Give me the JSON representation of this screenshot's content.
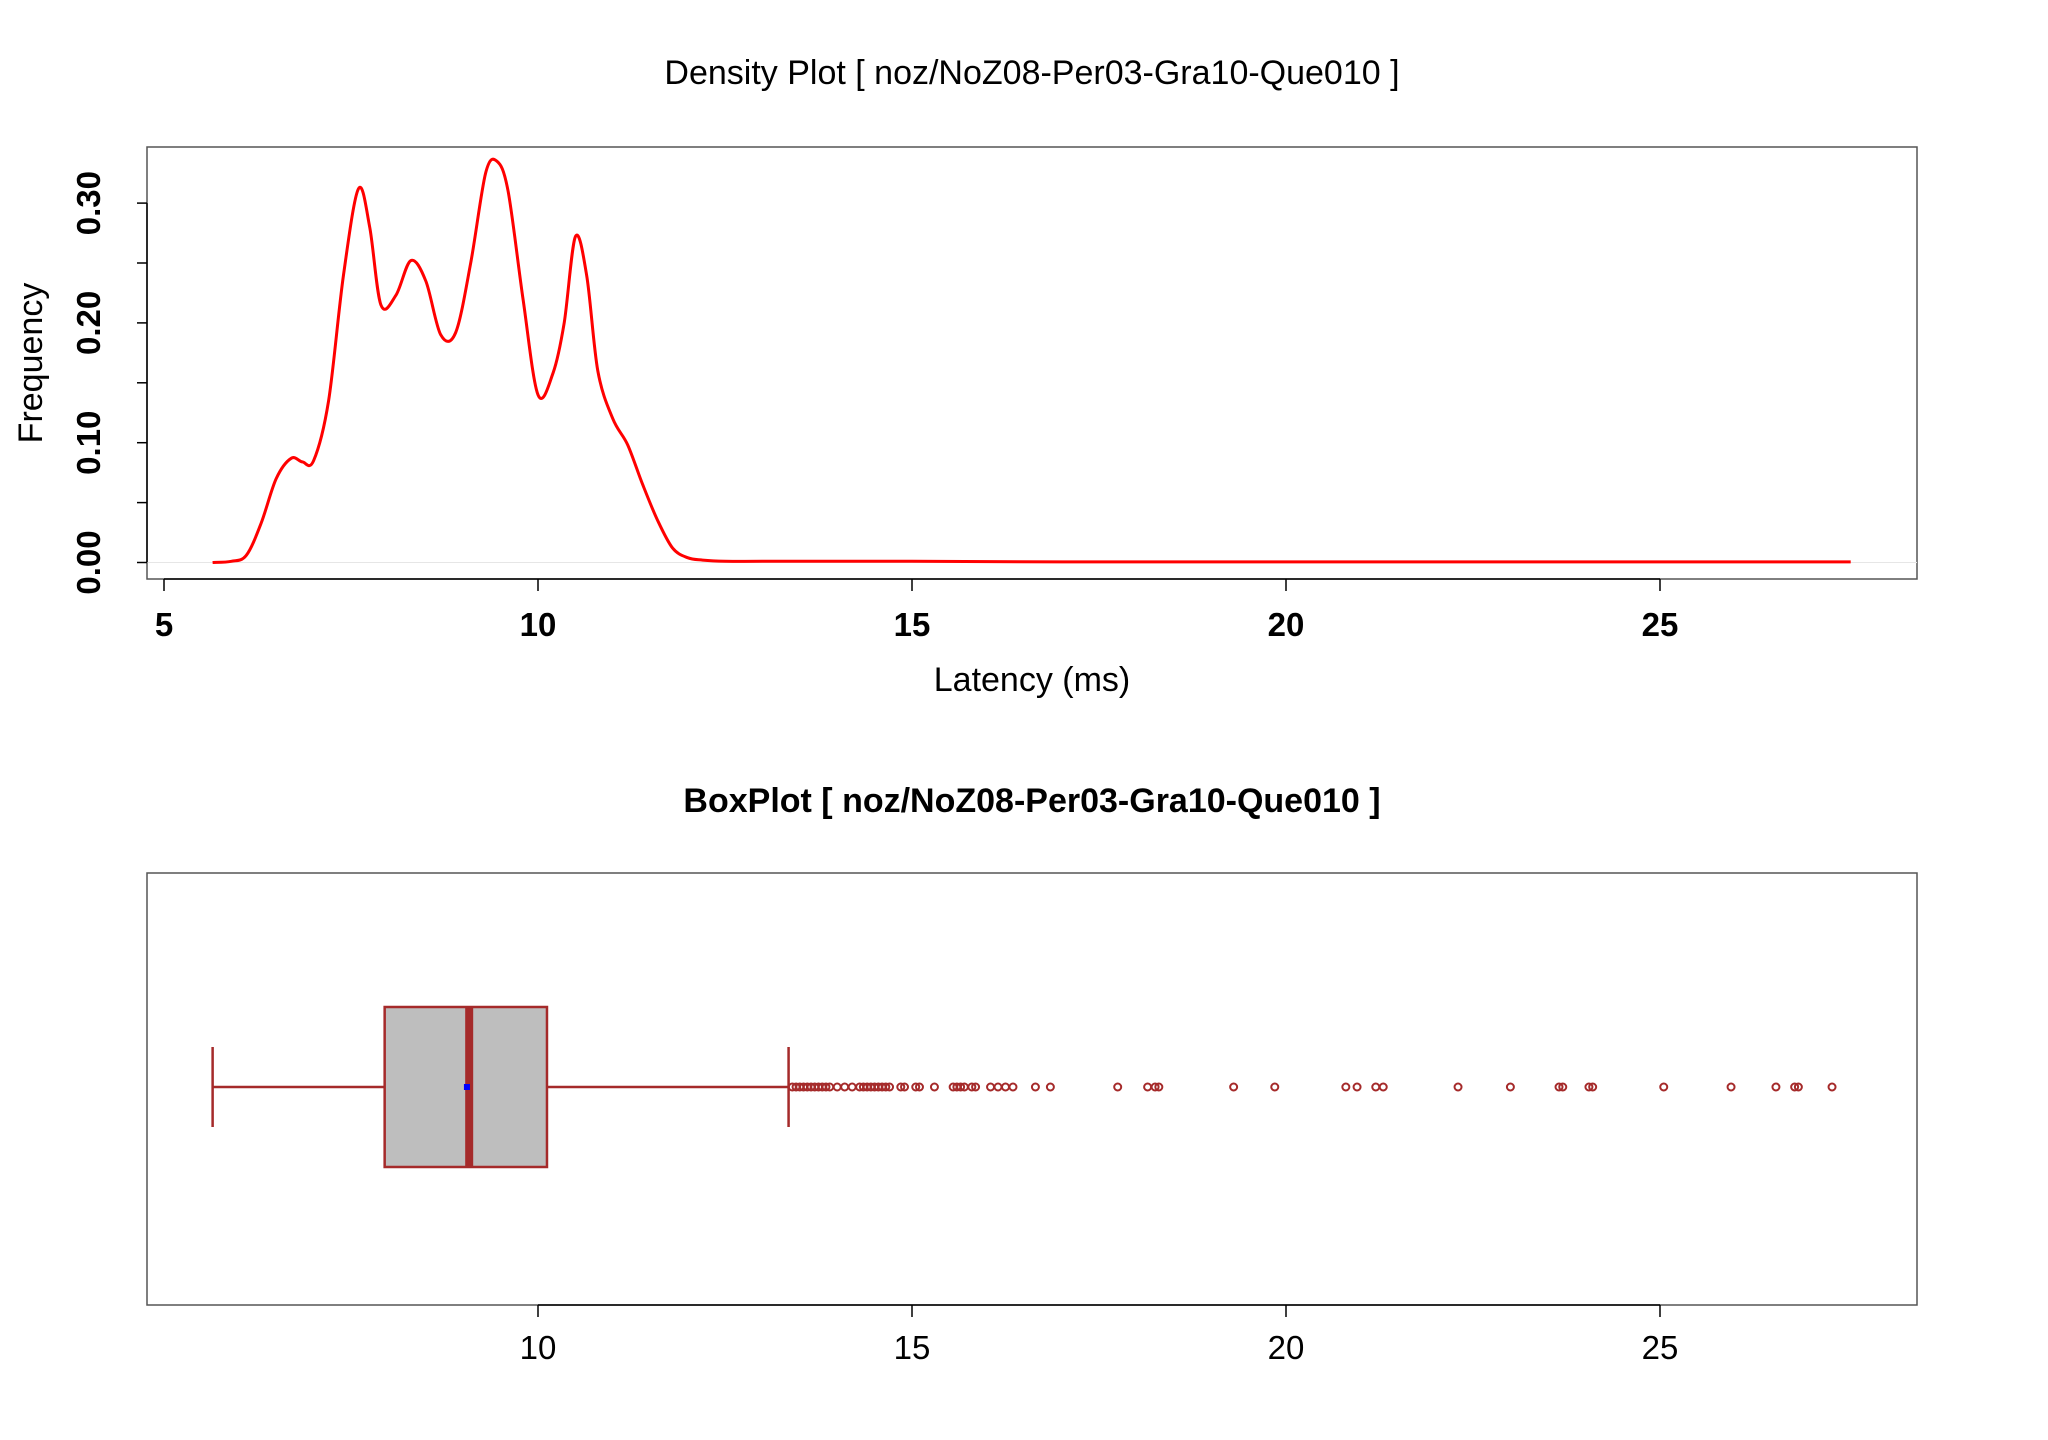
{
  "chart_data": [
    {
      "type": "line",
      "title": "Density Plot [ noz/NoZ08-Per03-Gra10-Que010 ]",
      "xlabel": "Latency (ms)",
      "ylabel": "Frequency",
      "xlim": [
        5,
        28
      ],
      "ylim": [
        0,
        0.335
      ],
      "x_ticks": [
        "5",
        "10",
        "15",
        "20",
        "25"
      ],
      "y_ticks": [
        "0.00",
        "0.10",
        "0.20",
        "0.30"
      ],
      "color": "#ff0000",
      "series": [
        {
          "x": [
            5.65,
            5.9,
            6.1,
            6.3,
            6.5,
            6.7,
            6.85,
            7.0,
            7.2,
            7.4,
            7.6,
            7.75,
            7.9,
            8.1,
            8.3,
            8.5,
            8.7,
            8.9,
            9.1,
            9.3,
            9.45,
            9.6,
            9.8,
            10.0,
            10.2,
            10.35,
            10.5,
            10.65,
            10.8,
            11.0,
            11.2,
            11.4,
            11.6,
            11.8,
            12.0,
            12.2,
            12.5,
            13.0,
            14.0,
            15.0,
            17.0,
            20.0,
            23.0,
            25.0,
            27.55
          ],
          "y": [
            0.0,
            0.001,
            0.006,
            0.033,
            0.07,
            0.087,
            0.084,
            0.085,
            0.135,
            0.24,
            0.312,
            0.28,
            0.215,
            0.223,
            0.252,
            0.235,
            0.19,
            0.192,
            0.25,
            0.325,
            0.335,
            0.31,
            0.22,
            0.14,
            0.158,
            0.2,
            0.272,
            0.24,
            0.16,
            0.12,
            0.098,
            0.065,
            0.035,
            0.012,
            0.004,
            0.002,
            0.001,
            0.001,
            0.001,
            0.001,
            0.0005,
            0.0005,
            0.0005,
            0.0005,
            0.0005
          ]
        }
      ]
    },
    {
      "type": "box",
      "title": "BoxPlot [ noz/NoZ08-Per03-Gra10-Que010 ]",
      "xlim": [
        5,
        28
      ],
      "x_ticks": [
        "10",
        "15",
        "20",
        "25"
      ],
      "box_color": "#bebebe",
      "line_color": "#a52a2a",
      "mean_color": "#0000ff",
      "whisker_low": 5.65,
      "q1": 7.95,
      "median": 9.08,
      "mean": 9.05,
      "q3": 10.12,
      "whisker_high": 13.35,
      "outliers": [
        13.4,
        13.45,
        13.5,
        13.55,
        13.6,
        13.65,
        13.7,
        13.75,
        13.8,
        13.85,
        13.9,
        14.0,
        14.1,
        14.2,
        14.3,
        14.35,
        14.4,
        14.45,
        14.5,
        14.55,
        14.6,
        14.65,
        14.7,
        14.85,
        14.9,
        15.05,
        15.1,
        15.3,
        15.55,
        15.6,
        15.65,
        15.7,
        15.8,
        15.85,
        16.05,
        16.15,
        16.25,
        16.35,
        16.65,
        16.85,
        17.75,
        18.15,
        18.25,
        18.3,
        19.3,
        19.85,
        20.8,
        20.95,
        21.2,
        21.3,
        22.3,
        23.0,
        23.65,
        23.7,
        24.05,
        24.1,
        25.05,
        25.95,
        26.55,
        26.8,
        26.85,
        27.3
      ]
    }
  ]
}
